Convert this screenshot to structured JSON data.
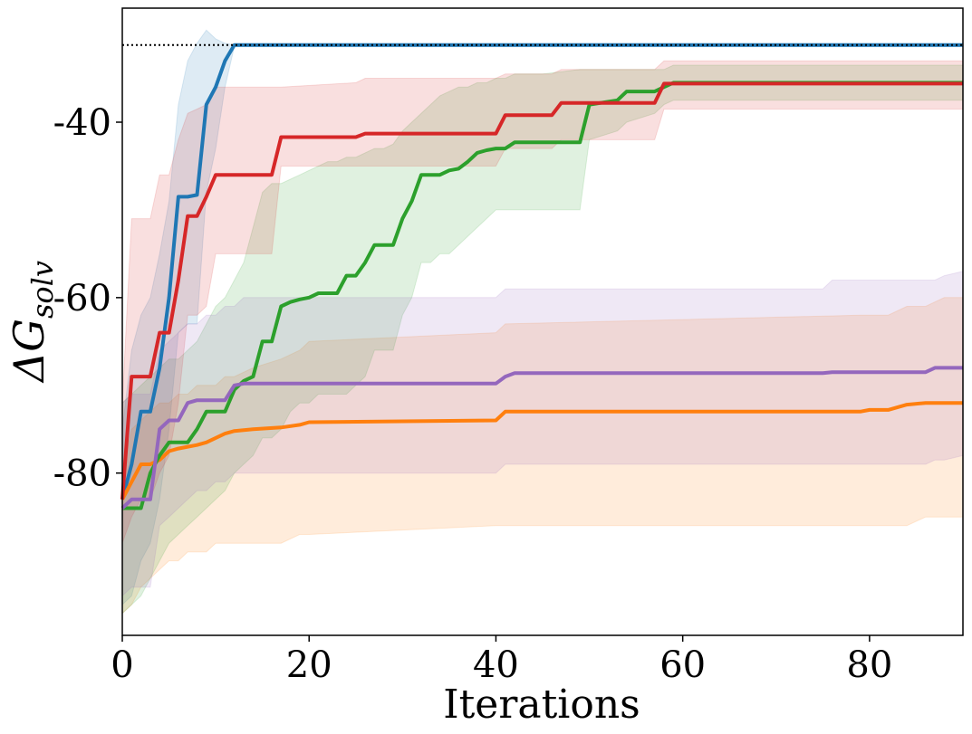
{
  "chart_data": {
    "type": "line",
    "title": "",
    "xlabel": "Iterations",
    "ylabel": "ΔG",
    "ylabel_subscript": "solv",
    "xlim": [
      0,
      90
    ],
    "ylim": [
      -98.5,
      -27
    ],
    "xticks": [
      0,
      20,
      40,
      60,
      80
    ],
    "xtick_labels": [
      "0",
      "20",
      "40",
      "60",
      "80"
    ],
    "yticks": [
      -80,
      -60,
      -40
    ],
    "ytick_labels": [
      "-80",
      "-60",
      "-40"
    ],
    "reference_line": {
      "y": -31.2,
      "style": "dotted",
      "color": "#000000"
    },
    "grid": false,
    "legend": "none",
    "series": [
      {
        "name": "blue",
        "color": "#1f77b4",
        "x": [
          0,
          1,
          2,
          3,
          4,
          5,
          6,
          7,
          8,
          9,
          10,
          11,
          12,
          90
        ],
        "y": [
          -83,
          -79,
          -73,
          -73,
          -68,
          -60,
          -48.5,
          -48.5,
          -48.3,
          -38,
          -36,
          -33,
          -31.2,
          -31.2
        ],
        "upper": [
          -75,
          -66,
          -62,
          -60,
          -55,
          -49,
          -38,
          -33,
          -31,
          -29.5,
          -30.5,
          -31,
          -31.2,
          -31.2
        ],
        "lower": [
          -95,
          -94,
          -90,
          -88,
          -83,
          -75,
          -64,
          -63,
          -63,
          -48,
          -43,
          -36,
          -31.4,
          -31.4
        ]
      },
      {
        "name": "orange",
        "color": "#ff7f0e",
        "x": [
          0,
          1,
          2,
          3,
          4,
          5,
          6,
          7,
          8,
          9,
          10,
          11,
          12,
          14,
          17,
          19,
          20,
          40,
          41,
          79,
          80,
          82,
          84,
          86,
          88,
          90
        ],
        "y": [
          -83,
          -81,
          -79,
          -79,
          -78.5,
          -77.5,
          -77.2,
          -77,
          -76.8,
          -76.5,
          -76,
          -75.5,
          -75.2,
          -75,
          -74.8,
          -74.5,
          -74.2,
          -74,
          -73,
          -73,
          -72.8,
          -72.8,
          -72.2,
          -72,
          -72,
          -72
        ],
        "upper": [
          -80,
          -75,
          -74,
          -73,
          -72,
          -72,
          -71,
          -71,
          -70,
          -70,
          -70,
          -69,
          -69,
          -68,
          -67,
          -66,
          -65,
          -64,
          -63,
          -62,
          -62,
          -62,
          -61,
          -61,
          -60,
          -60
        ],
        "lower": [
          -96,
          -95,
          -93,
          -92,
          -91,
          -90,
          -90,
          -89,
          -89,
          -89,
          -88,
          -88,
          -88,
          -88,
          -88,
          -87,
          -87,
          -86,
          -86,
          -86,
          -86,
          -86,
          -86,
          -85,
          -85,
          -85
        ]
      },
      {
        "name": "green",
        "color": "#2ca02c",
        "x": [
          0,
          1,
          2,
          3,
          4,
          5,
          6,
          7,
          8,
          9,
          10,
          11,
          12,
          13,
          14,
          15,
          16,
          17,
          18,
          19,
          20,
          21,
          22,
          23,
          24,
          25,
          26,
          27,
          28,
          29,
          30,
          31,
          32,
          33,
          34,
          35,
          36,
          37,
          38,
          39,
          40,
          41,
          42,
          45,
          49,
          50,
          53,
          54,
          57,
          58,
          59,
          60,
          90
        ],
        "y": [
          -84,
          -84,
          -84,
          -80,
          -78,
          -76.5,
          -76.5,
          -76.5,
          -75,
          -73,
          -73,
          -73,
          -70.5,
          -69.5,
          -69,
          -65,
          -65,
          -61,
          -60.5,
          -60.2,
          -60,
          -59.5,
          -59.5,
          -59.5,
          -57.5,
          -57.5,
          -56,
          -54,
          -54,
          -54,
          -51,
          -49,
          -46,
          -46,
          -46,
          -45.5,
          -45.3,
          -44.5,
          -43.5,
          -43.2,
          -43,
          -43,
          -42.3,
          -42.3,
          -42.3,
          -38,
          -37.5,
          -36.5,
          -36.5,
          -36,
          -35.5,
          -35.5,
          -35.5
        ],
        "upper": [
          -72,
          -71,
          -70,
          -69,
          -68,
          -67,
          -67,
          -66,
          -65,
          -63,
          -61,
          -60,
          -58,
          -56,
          -52,
          -48,
          -47,
          -47,
          -46.5,
          -46,
          -45.5,
          -45,
          -44.5,
          -44.5,
          -44,
          -44,
          -43.5,
          -43,
          -43,
          -42.5,
          -41,
          -40,
          -39,
          -38,
          -37,
          -36.5,
          -36,
          -36,
          -35.5,
          -35.5,
          -35,
          -35,
          -34.5,
          -34.5,
          -34,
          -34,
          -34,
          -34,
          -34,
          -34,
          -33.5,
          -33.5,
          -33.5
        ],
        "lower": [
          -96,
          -95,
          -94,
          -92,
          -90,
          -88,
          -87,
          -86,
          -85,
          -84,
          -83,
          -82,
          -80,
          -79,
          -78,
          -76,
          -76,
          -75,
          -73,
          -72,
          -72,
          -71,
          -71,
          -71,
          -71,
          -70,
          -69,
          -66,
          -66,
          -66,
          -62,
          -60,
          -56,
          -56,
          -55,
          -55,
          -54,
          -53,
          -52,
          -51,
          -50,
          -50,
          -50,
          -50,
          -50,
          -42,
          -41,
          -40,
          -39,
          -38,
          -37.5,
          -37.5,
          -37.5
        ]
      },
      {
        "name": "red",
        "color": "#d62728",
        "x": [
          0,
          1,
          2,
          3,
          4,
          5,
          6,
          7,
          8,
          9,
          10,
          16,
          17,
          25,
          26,
          40,
          41,
          46,
          47,
          57,
          58,
          90
        ],
        "y": [
          -83,
          -69,
          -69,
          -69,
          -64,
          -64,
          -58,
          -50.7,
          -50.7,
          -48.5,
          -46,
          -46,
          -41.7,
          -41.7,
          -41.3,
          -41.3,
          -39.2,
          -39.2,
          -37.8,
          -37.8,
          -35.6,
          -35.6
        ],
        "upper": [
          -72,
          -51,
          -51,
          -51,
          -46,
          -46,
          -42,
          -39,
          -38.5,
          -38,
          -36,
          -36,
          -36,
          -35.5,
          -35,
          -35,
          -34.5,
          -34.5,
          -34,
          -34,
          -33,
          -33
        ],
        "lower": [
          -88,
          -85,
          -83,
          -83,
          -80,
          -78,
          -72,
          -62,
          -62,
          -61,
          -55,
          -55,
          -45,
          -45,
          -45,
          -45,
          -43,
          -43,
          -42,
          -42,
          -38.5,
          -38.5
        ]
      },
      {
        "name": "purple",
        "color": "#9467bd",
        "x": [
          0,
          1,
          2,
          3,
          4,
          5,
          6,
          7,
          8,
          9,
          10,
          11,
          12,
          13,
          40,
          41,
          42,
          75,
          76,
          86,
          87,
          88,
          90
        ],
        "y": [
          -84,
          -83,
          -83,
          -83,
          -75,
          -74,
          -74,
          -72,
          -71.7,
          -71.7,
          -71.7,
          -71.7,
          -70,
          -69.8,
          -69.8,
          -69,
          -68.6,
          -68.6,
          -68.5,
          -68.5,
          -68,
          -68,
          -68
        ],
        "upper": [
          -72,
          -71,
          -71,
          -71,
          -66,
          -65,
          -64,
          -63,
          -63,
          -62,
          -62,
          -61,
          -61,
          -60,
          -60,
          -59,
          -59,
          -59,
          -58,
          -58,
          -58,
          -57.5,
          -57
        ],
        "lower": [
          -94,
          -93,
          -93,
          -93,
          -86,
          -85,
          -84,
          -83,
          -82,
          -82,
          -81,
          -81,
          -80,
          -80,
          -80,
          -79,
          -79,
          -79,
          -79,
          -79,
          -78.5,
          -78.5,
          -78
        ]
      }
    ]
  }
}
